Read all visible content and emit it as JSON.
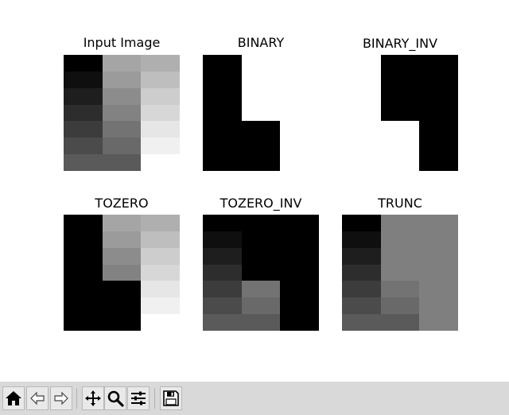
{
  "titles": {
    "input": "Input Image",
    "binary": "BINARY",
    "binary_inv": "BINARY_INV",
    "tozero": "TOZERO",
    "tozero_inv": "TOZERO_INV",
    "trunc": "TRUNC"
  },
  "colors": {
    "figure_bg": "#ffffff",
    "toolbar_bg": "#d9d9d9"
  },
  "images": {
    "input": [
      [
        0,
        165,
        175
      ],
      [
        15,
        155,
        190
      ],
      [
        30,
        140,
        205
      ],
      [
        45,
        130,
        215
      ],
      [
        60,
        115,
        230
      ],
      [
        75,
        105,
        240
      ],
      [
        90,
        90,
        255
      ]
    ],
    "binary": [
      [
        0,
        255,
        255
      ],
      [
        0,
        255,
        255
      ],
      [
        0,
        255,
        255
      ],
      [
        0,
        255,
        255
      ],
      [
        0,
        0,
        255
      ],
      [
        0,
        0,
        255
      ],
      [
        0,
        0,
        255
      ]
    ],
    "binary_inv": [
      [
        255,
        0,
        0
      ],
      [
        255,
        0,
        0
      ],
      [
        255,
        0,
        0
      ],
      [
        255,
        0,
        0
      ],
      [
        255,
        255,
        0
      ],
      [
        255,
        255,
        0
      ],
      [
        255,
        255,
        0
      ]
    ],
    "tozero": [
      [
        0,
        165,
        175
      ],
      [
        0,
        155,
        190
      ],
      [
        0,
        140,
        205
      ],
      [
        0,
        130,
        215
      ],
      [
        0,
        0,
        230
      ],
      [
        0,
        0,
        240
      ],
      [
        0,
        0,
        255
      ]
    ],
    "tozero_inv": [
      [
        0,
        0,
        0
      ],
      [
        15,
        0,
        0
      ],
      [
        30,
        0,
        0
      ],
      [
        45,
        0,
        0
      ],
      [
        60,
        115,
        0
      ],
      [
        75,
        105,
        0
      ],
      [
        90,
        90,
        0
      ]
    ],
    "trunc": [
      [
        0,
        127,
        127
      ],
      [
        15,
        127,
        127
      ],
      [
        30,
        127,
        127
      ],
      [
        45,
        127,
        127
      ],
      [
        60,
        115,
        127
      ],
      [
        75,
        105,
        127
      ],
      [
        90,
        90,
        127
      ]
    ]
  },
  "toolbar": {
    "icons": [
      "home-icon",
      "back-icon",
      "forward-icon",
      "pan-icon",
      "zoom-icon",
      "configure-subplots-icon",
      "save-icon"
    ]
  }
}
